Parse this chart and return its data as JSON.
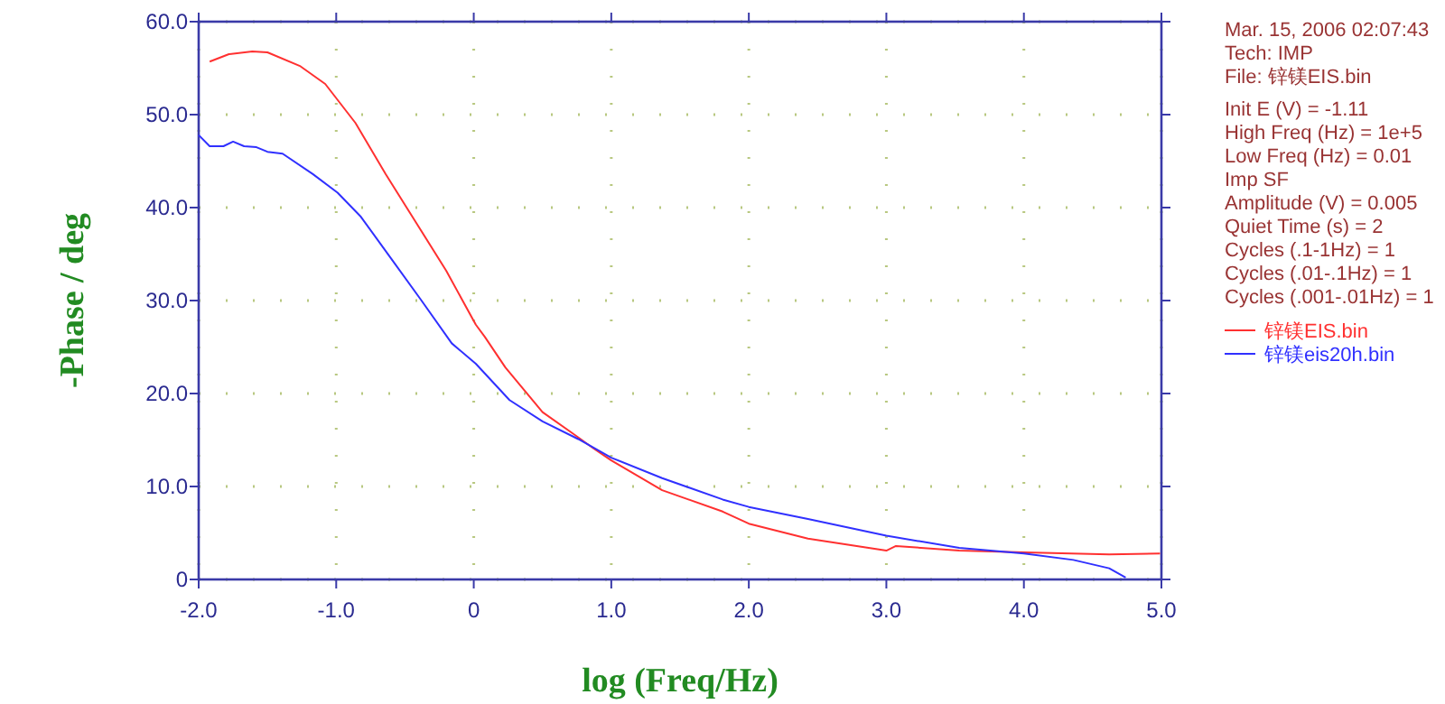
{
  "chart_data": {
    "type": "line",
    "xlabel": "log (Freq/Hz)",
    "ylabel": "-Phase / deg",
    "xlim": [
      -2,
      5
    ],
    "ylim": [
      0,
      60
    ],
    "xticks": [
      {
        "value": -2,
        "label": "-2.0"
      },
      {
        "value": -1,
        "label": "-1.0"
      },
      0,
      {
        "value": 1,
        "label": "1.0"
      },
      {
        "value": 2,
        "label": "2.0"
      },
      {
        "value": 3,
        "label": "3.0"
      },
      {
        "value": 4,
        "label": "4.0"
      },
      {
        "value": 5,
        "label": "5.0"
      }
    ],
    "yticks": [
      0,
      {
        "value": 10,
        "label": "10.0"
      },
      {
        "value": 20,
        "label": "20.0"
      },
      {
        "value": 30,
        "label": "30.0"
      },
      {
        "value": 40,
        "label": "40.0"
      },
      {
        "value": 50,
        "label": "50.0"
      },
      {
        "value": 60,
        "label": "60.0"
      }
    ],
    "grid": true,
    "legend": "right",
    "annotations": [
      "Mar. 15, 2006   02:07:43",
      "Tech: IMP",
      "File: 锌镁EIS.bin",
      "Init E (V) = -1.11",
      "High Freq (Hz) = 1e+5",
      "Low Freq (Hz) = 0.01",
      "Imp SF",
      "Amplitude (V) = 0.005",
      "Quiet Time (s) = 2",
      "Cycles (.1-1Hz) = 1",
      "Cycles (.01-.1Hz) = 1",
      "Cycles (.001-.01Hz) = 1"
    ],
    "series": [
      {
        "name": "锌镁EIS.bin",
        "color": "#ff3030",
        "x": [
          -1.92,
          -1.78,
          -1.61,
          -1.5,
          -1.26,
          -1.08,
          -0.86,
          -0.64,
          -0.42,
          -0.2,
          0.015,
          0.08,
          0.23,
          0.5,
          0.72,
          0.87,
          1.0,
          1.37,
          1.81,
          2.0,
          2.43,
          3.0,
          3.07,
          3.53,
          4.0,
          4.62,
          4.99
        ],
        "values": [
          55.7,
          56.5,
          56.8,
          56.7,
          55.2,
          53.3,
          49.1,
          43.6,
          38.4,
          33.2,
          27.4,
          26.1,
          22.8,
          18.0,
          15.7,
          14.1,
          12.8,
          9.6,
          7.3,
          6.0,
          4.4,
          3.1,
          3.6,
          3.1,
          2.9,
          2.7,
          2.8
        ]
      },
      {
        "name": "锌镁eis20h.bin",
        "color": "#3030ff",
        "x": [
          -2.0,
          -1.92,
          -1.82,
          -1.75,
          -1.67,
          -1.58,
          -1.5,
          -1.39,
          -1.17,
          -0.99,
          -0.82,
          -0.6,
          -0.38,
          -0.16,
          0.015,
          0.26,
          0.5,
          0.76,
          1.0,
          1.37,
          1.81,
          2.0,
          2.43,
          3.0,
          3.53,
          4.0,
          4.36,
          4.62,
          4.74
        ],
        "values": [
          47.8,
          46.6,
          46.6,
          47.1,
          46.6,
          46.5,
          46.0,
          45.8,
          43.6,
          41.6,
          39.0,
          34.5,
          30.0,
          25.4,
          23.2,
          19.3,
          17.0,
          15.1,
          13.1,
          10.9,
          8.6,
          7.8,
          6.5,
          4.7,
          3.4,
          2.8,
          2.1,
          1.2,
          0.2
        ]
      }
    ]
  }
}
